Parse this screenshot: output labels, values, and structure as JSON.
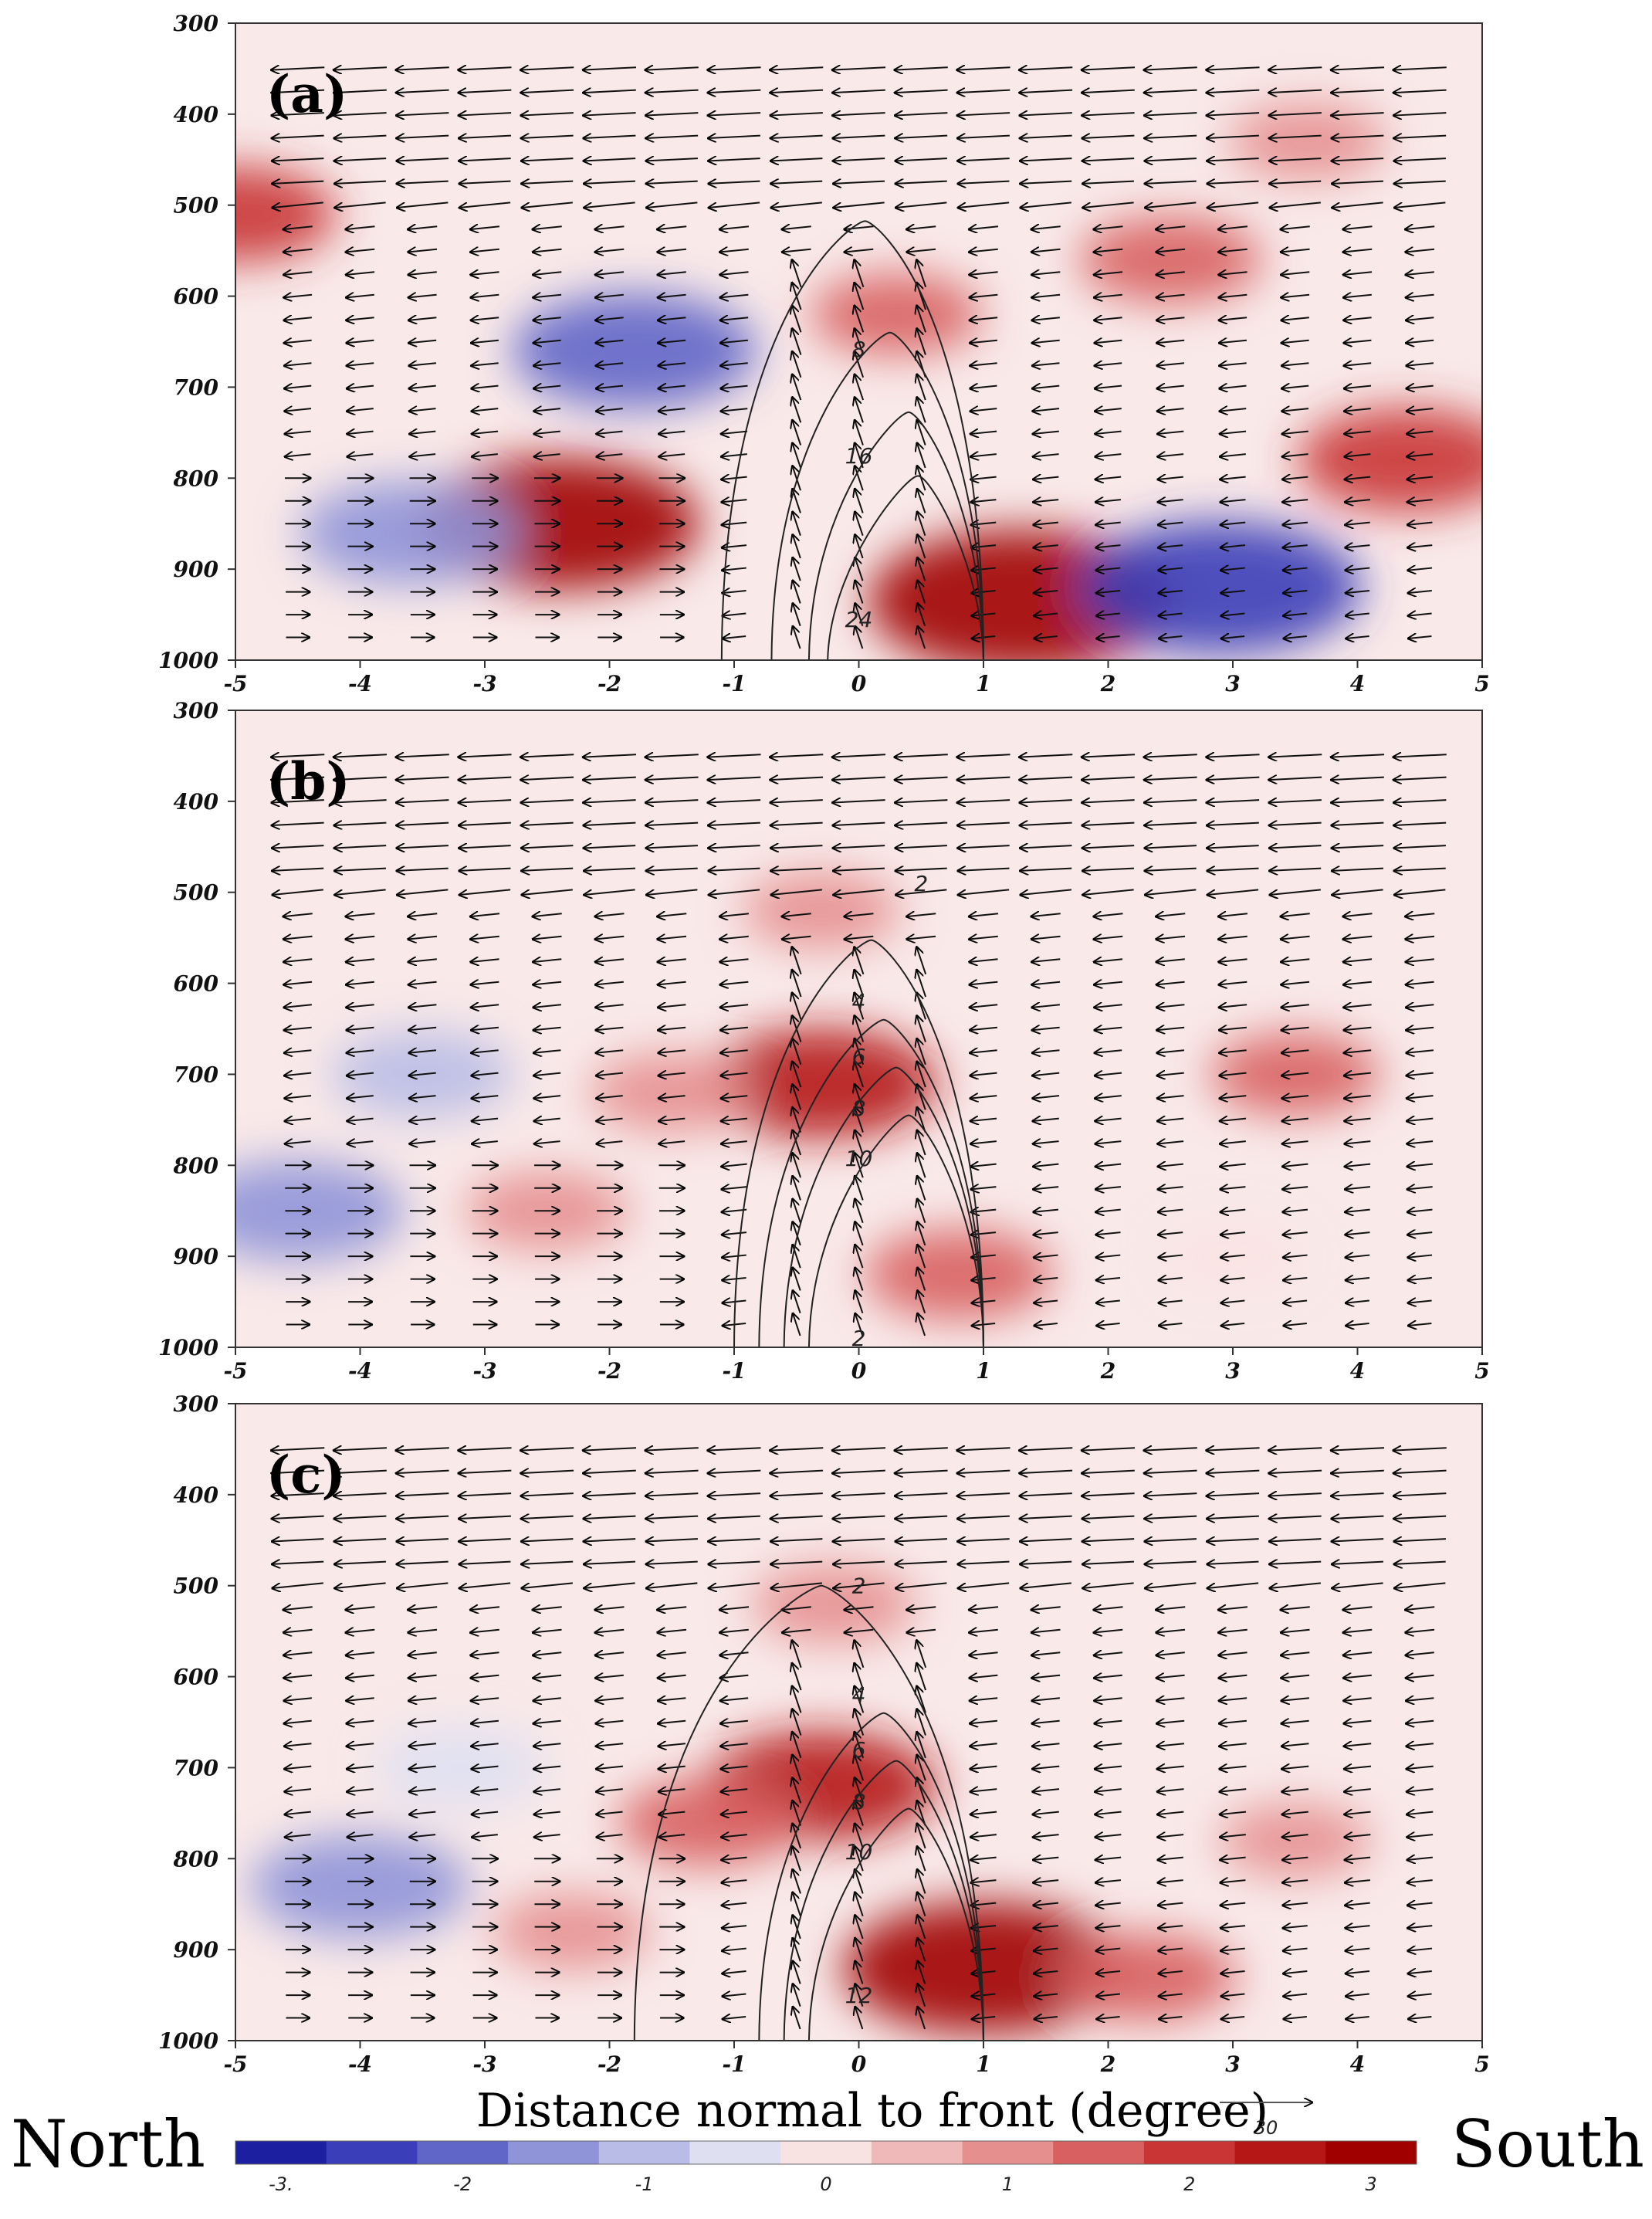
{
  "chart_data": {
    "type": "contour",
    "x_title": "Distance normal to front (degree)",
    "x_ticks": [
      "-5",
      "-4",
      "-3",
      "-2",
      "-1",
      "0",
      "1",
      "2",
      "3",
      "4",
      "5"
    ],
    "y_ticks": [
      "300",
      "400",
      "500",
      "600",
      "700",
      "800",
      "900",
      "1000"
    ],
    "xlim": [
      -5,
      5
    ],
    "ylim": [
      300,
      1000
    ],
    "y_reversed": true,
    "left_label": "North",
    "right_label": "South",
    "reference_vector": "30",
    "colorbar": {
      "labels": [
        "-3.",
        "-2",
        "-1",
        "0",
        "1",
        "2",
        "3"
      ],
      "colors": [
        "#1b1fa0",
        "#3a3eb8",
        "#6065c8",
        "#8f93d8",
        "#b9bce6",
        "#dee0f2",
        "#f9e2e2",
        "#f0b9b9",
        "#e58f8f",
        "#d86060",
        "#c93535",
        "#b51616",
        "#a00000"
      ]
    },
    "panels": [
      {
        "label": "(a)",
        "contour_labels": [
          {
            "text": "8",
            "x": 0,
            "y": 658
          },
          {
            "text": "16",
            "x": 0,
            "y": 775
          },
          {
            "text": "24",
            "x": 0,
            "y": 955
          }
        ],
        "shading": [
          {
            "x": 4.4,
            "y": 780,
            "v": 1.8
          },
          {
            "x": 1.3,
            "y": 935,
            "v": 3.2
          },
          {
            "x": -2.4,
            "y": 850,
            "v": 2.8
          },
          {
            "x": -1.8,
            "y": 660,
            "v": -2.2
          },
          {
            "x": 2.9,
            "y": 920,
            "v": -2.8
          },
          {
            "x": -3.6,
            "y": 860,
            "v": -1.8
          },
          {
            "x": -5.0,
            "y": 510,
            "v": 1.5
          },
          {
            "x": 2.5,
            "y": 560,
            "v": 1.2
          },
          {
            "x": 3.6,
            "y": 430,
            "v": 0.8
          },
          {
            "x": 0.3,
            "y": 620,
            "v": 1.0
          }
        ],
        "contours": [
          [
            -1.1,
            1.0,
            0.22,
            0.95,
            2
          ],
          [
            -0.7,
            1.0,
            0.0,
            0.6,
            8
          ],
          [
            -0.4,
            1.0,
            0.0,
            0.35,
            16
          ],
          [
            -0.25,
            1.0,
            0.0,
            0.15,
            24
          ]
        ]
      },
      {
        "label": "(b)",
        "contour_labels": [
          {
            "text": "2",
            "x": 0.5,
            "y": 490
          },
          {
            "text": "4",
            "x": 0,
            "y": 620
          },
          {
            "text": "6",
            "x": 0,
            "y": 680
          },
          {
            "text": "8",
            "x": 0,
            "y": 737
          },
          {
            "text": "10",
            "x": 0,
            "y": 792
          },
          {
            "text": "2",
            "x": 0,
            "y": 990
          }
        ],
        "shading": [
          {
            "x": -0.3,
            "y": 710,
            "v": 2.0
          },
          {
            "x": 3.5,
            "y": 700,
            "v": 1.0
          },
          {
            "x": -1.5,
            "y": 720,
            "v": 0.9
          },
          {
            "x": 0.8,
            "y": 920,
            "v": 1.3
          },
          {
            "x": -4.5,
            "y": 850,
            "v": -1.7
          },
          {
            "x": -3.5,
            "y": 700,
            "v": -1.2
          },
          {
            "x": -2.5,
            "y": 850,
            "v": 0.9
          },
          {
            "x": -0.3,
            "y": 520,
            "v": 0.8
          },
          {
            "x": 3.0,
            "y": 900,
            "v": -0.4
          }
        ],
        "contours": [
          [
            -1.0,
            1.0,
            0.3,
            0.85,
            2
          ],
          [
            -0.8,
            1.0,
            0.0,
            0.6,
            4
          ],
          [
            -0.6,
            1.0,
            0.0,
            0.45,
            8
          ],
          [
            -0.4,
            1.0,
            0.0,
            0.3,
            10
          ]
        ]
      },
      {
        "label": "(c)",
        "contour_labels": [
          {
            "text": "2",
            "x": 0,
            "y": 500
          },
          {
            "text": "4",
            "x": 0,
            "y": 620
          },
          {
            "text": "6",
            "x": 0,
            "y": 680
          },
          {
            "text": "8",
            "x": 0,
            "y": 737
          },
          {
            "text": "10",
            "x": 0,
            "y": 792
          },
          {
            "text": "12",
            "x": 0,
            "y": 950
          }
        ],
        "shading": [
          {
            "x": 1.0,
            "y": 920,
            "v": 2.8
          },
          {
            "x": -0.3,
            "y": 720,
            "v": 2.0
          },
          {
            "x": -1.2,
            "y": 760,
            "v": 1.2
          },
          {
            "x": 2.3,
            "y": 930,
            "v": 1.2
          },
          {
            "x": -4.0,
            "y": 830,
            "v": -1.8
          },
          {
            "x": -3.2,
            "y": 700,
            "v": -1.0
          },
          {
            "x": -0.2,
            "y": 520,
            "v": 0.9
          },
          {
            "x": 3.5,
            "y": 780,
            "v": 0.7
          },
          {
            "x": -2.3,
            "y": 880,
            "v": 0.8
          }
        ],
        "contours": [
          [
            -1.8,
            1.0,
            0.0,
            1.0,
            2
          ],
          [
            -0.8,
            1.0,
            0.0,
            0.6,
            4
          ],
          [
            -0.6,
            1.0,
            0.0,
            0.45,
            8
          ],
          [
            -0.4,
            1.0,
            0.0,
            0.3,
            12
          ]
        ]
      }
    ]
  }
}
